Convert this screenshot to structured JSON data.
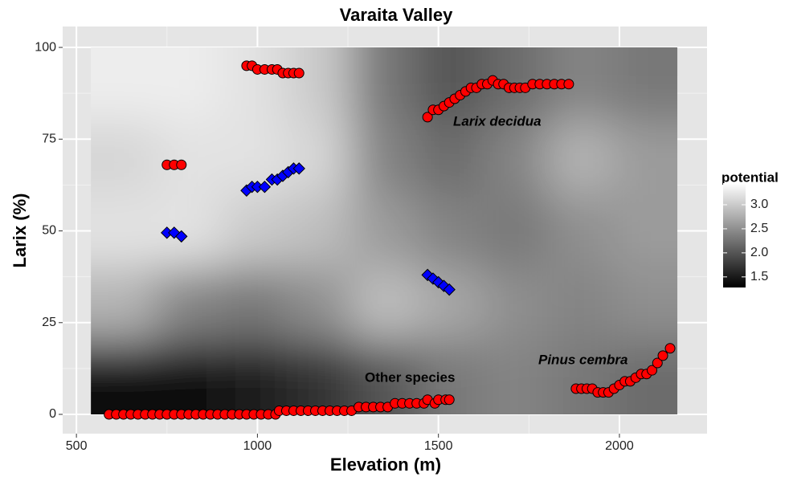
{
  "chart_data": {
    "type": "heatmap_scatter",
    "title": "Varaita Valley",
    "x_label": "Elevation (m)",
    "y_label": "Larix (%)",
    "xlim": [
      462,
      2242
    ],
    "ylim": [
      -5.25,
      105.7
    ],
    "xticks": [
      500,
      1000,
      1500,
      2000
    ],
    "yticks": [
      0,
      25,
      50,
      75,
      100
    ],
    "grid": true,
    "z_x_edges": [
      540,
      720,
      900,
      1080,
      1260,
      1440,
      1620,
      1800,
      1980,
      2160
    ],
    "z_y_edges": [
      0,
      20,
      40,
      60,
      80,
      100
    ],
    "z": [
      [
        1.4,
        1.4,
        1.5,
        1.7,
        2.0,
        2.3,
        2.4,
        2.3,
        2.2
      ],
      [
        2.8,
        2.4,
        2.3,
        2.5,
        2.9,
        2.7,
        2.5,
        2.4,
        2.5
      ],
      [
        3.2,
        3.2,
        3.0,
        2.9,
        2.6,
        2.4,
        2.3,
        2.5,
        2.6
      ],
      [
        3.1,
        3.2,
        3.2,
        3.1,
        2.4,
        2.2,
        2.4,
        2.8,
        2.6
      ],
      [
        3.3,
        3.3,
        3.2,
        3.0,
        2.3,
        2.0,
        2.2,
        2.4,
        2.3
      ]
    ],
    "colorbar_title": "potential",
    "zlim": [
      1.28,
      3.45
    ],
    "colormap": [
      "#000000",
      "#ffffff"
    ],
    "zticks": [
      {
        "value": 1.5,
        "label": "1.5"
      },
      {
        "value": 2.0,
        "label": "2.0"
      },
      {
        "value": 2.5,
        "label": "2.5"
      },
      {
        "value": 3.0,
        "label": "3.0"
      }
    ],
    "series": [
      {
        "color": "#ff0000",
        "marker": "circle",
        "x": [
          590,
          610,
          630,
          650,
          670,
          690,
          710,
          730,
          750,
          770,
          790,
          810,
          830,
          850,
          870,
          890,
          910,
          930,
          950,
          970,
          990,
          1010,
          1030,
          1050,
          1060,
          1080,
          1100,
          1120,
          1140,
          1160,
          1180,
          1200,
          1220,
          1240,
          1260,
          1280,
          1300,
          1320,
          1340,
          1360,
          1380,
          1400,
          1420,
          1440,
          1460,
          1470,
          1490,
          1500,
          1520,
          1530,
          970,
          985,
          1000,
          1020,
          1040,
          1055,
          1070,
          1085,
          1100,
          1115,
          750,
          770,
          790,
          1470,
          1485,
          1500,
          1515,
          1530,
          1545,
          1560,
          1575,
          1590,
          1605,
          1620,
          1635,
          1650,
          1665,
          1680,
          1695,
          1710,
          1725,
          1740,
          1760,
          1780,
          1800,
          1820,
          1840,
          1860,
          1880,
          1895,
          1910,
          1925,
          1940,
          1955,
          1970,
          1985,
          2000,
          2015,
          2030,
          2045,
          2060,
          2075,
          2090,
          2105,
          2120,
          2140
        ],
        "y": [
          0,
          0,
          0,
          0,
          0,
          0,
          0,
          0,
          0,
          0,
          0,
          0,
          0,
          0,
          0,
          0,
          0,
          0,
          0,
          0,
          0,
          0,
          0,
          0,
          1,
          1,
          1,
          1,
          1,
          1,
          1,
          1,
          1,
          1,
          1,
          2,
          2,
          2,
          2,
          2,
          3,
          3,
          3,
          3,
          3,
          4,
          3,
          4,
          4,
          4,
          95,
          95,
          94,
          94,
          94,
          94,
          93,
          93,
          93,
          93,
          68,
          68,
          68,
          81,
          83,
          83,
          84,
          85,
          86,
          87,
          88,
          89,
          89,
          90,
          90,
          91,
          90,
          90,
          89,
          89,
          89,
          89,
          90,
          90,
          90,
          90,
          90,
          90,
          7,
          7,
          7,
          7,
          6,
          6,
          6,
          7,
          8,
          9,
          9,
          10,
          11,
          11,
          12,
          14,
          16,
          18
        ]
      },
      {
        "color": "#0000ff",
        "marker": "diamond",
        "x": [
          750,
          770,
          790,
          970,
          985,
          1000,
          1020,
          1040,
          1055,
          1070,
          1085,
          1100,
          1115,
          1470,
          1485,
          1500,
          1515,
          1530
        ],
        "y": [
          49.5,
          49.5,
          48.5,
          61,
          62,
          62,
          62,
          64,
          64,
          65,
          66,
          67,
          67,
          38,
          37,
          36,
          35,
          34
        ]
      }
    ],
    "annotations": [
      "Larix decidua",
      "Pinus cembra",
      "Other species"
    ]
  }
}
